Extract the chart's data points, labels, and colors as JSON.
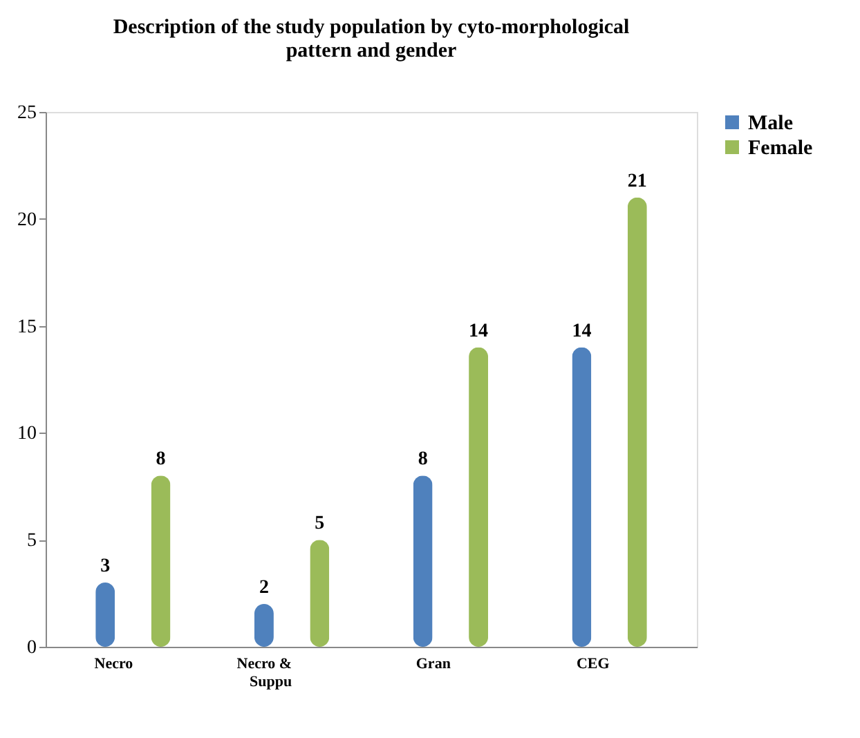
{
  "chart_data": {
    "type": "bar",
    "title": "Description of the study population by cyto-morphological pattern and gender",
    "categories": [
      "Necro",
      "Necro & Suppu",
      "Gran",
      "CEG"
    ],
    "series": [
      {
        "name": "Male",
        "color": "#4f81bd",
        "values": [
          3,
          2,
          8,
          14
        ]
      },
      {
        "name": "Female",
        "color": "#9bbb59",
        "values": [
          8,
          5,
          14,
          21
        ]
      }
    ],
    "ylim": [
      0,
      25
    ],
    "yticks": [
      0,
      5,
      10,
      15,
      20,
      25
    ],
    "grid": false,
    "legend": "right",
    "data_labels": true
  }
}
